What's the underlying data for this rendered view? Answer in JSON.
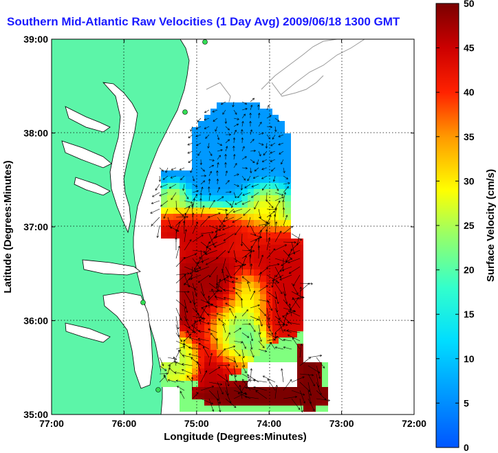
{
  "title": "Southern Mid-Atlantic Raw Velocities (1 Day Avg) 2009/06/18 1300 GMT",
  "x_axis": {
    "label": "Longitude (Degrees:Minutes)",
    "ticks": [
      "77:00",
      "76:00",
      "75:00",
      "74:00",
      "73:00",
      "72:00"
    ]
  },
  "y_axis": {
    "label": "Latitude (Degrees:Minutes)",
    "ticks": [
      "39:00",
      "38:00",
      "37:00",
      "36:00",
      "35:00"
    ]
  },
  "colorbar": {
    "label": "Surface Velocity (cm/s)",
    "min": 0,
    "max": 50,
    "ticks": [
      "0",
      "5",
      "10",
      "15",
      "20",
      "25",
      "30",
      "35",
      "40",
      "45",
      "50"
    ]
  },
  "colors": {
    "land": "#5cf5a8",
    "coast": "#000000",
    "bathymetry": "#999999",
    "vectors": "#000000",
    "title": "#1a1aff"
  },
  "map_extent": {
    "lon": [
      -77,
      -72
    ],
    "lat": [
      35,
      39
    ]
  }
}
